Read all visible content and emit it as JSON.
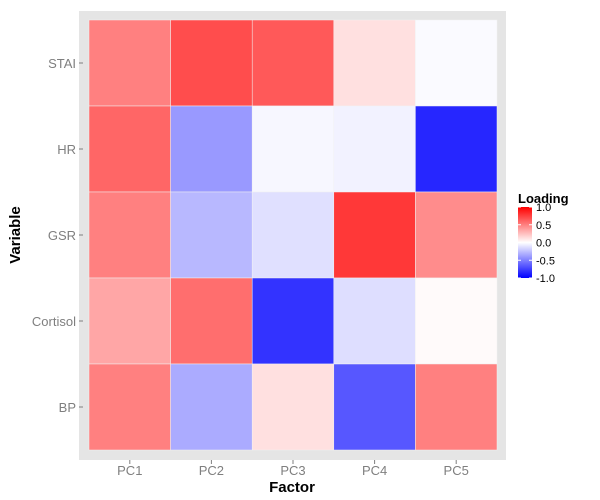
{
  "chart_data": {
    "type": "heatmap",
    "title": "",
    "xlabel": "Factor",
    "ylabel": "Variable",
    "x_categories": [
      "PC1",
      "PC2",
      "PC3",
      "PC4",
      "PC5"
    ],
    "y_categories": [
      "BP",
      "Cortisol",
      "GSR",
      "HR",
      "STAI"
    ],
    "values": [
      {
        "x": "PC1",
        "y": "STAI",
        "value": 0.5
      },
      {
        "x": "PC2",
        "y": "STAI",
        "value": 0.7
      },
      {
        "x": "PC3",
        "y": "STAI",
        "value": 0.65
      },
      {
        "x": "PC4",
        "y": "STAI",
        "value": 0.12
      },
      {
        "x": "PC5",
        "y": "STAI",
        "value": -0.02
      },
      {
        "x": "PC1",
        "y": "HR",
        "value": 0.6
      },
      {
        "x": "PC2",
        "y": "HR",
        "value": -0.4
      },
      {
        "x": "PC3",
        "y": "HR",
        "value": -0.03
      },
      {
        "x": "PC4",
        "y": "HR",
        "value": -0.05
      },
      {
        "x": "PC5",
        "y": "HR",
        "value": -0.85
      },
      {
        "x": "PC1",
        "y": "GSR",
        "value": 0.5
      },
      {
        "x": "PC2",
        "y": "GSR",
        "value": -0.28
      },
      {
        "x": "PC3",
        "y": "GSR",
        "value": -0.12
      },
      {
        "x": "PC4",
        "y": "GSR",
        "value": 0.78
      },
      {
        "x": "PC5",
        "y": "GSR",
        "value": 0.45
      },
      {
        "x": "PC1",
        "y": "Cortisol",
        "value": 0.35
      },
      {
        "x": "PC2",
        "y": "Cortisol",
        "value": 0.57
      },
      {
        "x": "PC3",
        "y": "Cortisol",
        "value": -0.8
      },
      {
        "x": "PC4",
        "y": "Cortisol",
        "value": -0.13
      },
      {
        "x": "PC5",
        "y": "Cortisol",
        "value": 0.02
      },
      {
        "x": "PC1",
        "y": "BP",
        "value": 0.5
      },
      {
        "x": "PC2",
        "y": "BP",
        "value": -0.33
      },
      {
        "x": "PC3",
        "y": "BP",
        "value": 0.12
      },
      {
        "x": "PC4",
        "y": "BP",
        "value": -0.66
      },
      {
        "x": "PC5",
        "y": "BP",
        "value": 0.5
      }
    ],
    "legend": {
      "title": "Loading",
      "breaks": [
        1.0,
        0.5,
        0.0,
        -0.5,
        -1.0
      ],
      "labels": [
        "1.0",
        "0.5",
        "0.0",
        "-0.5",
        "-1.0"
      ],
      "limits": [
        -1.0,
        1.0
      ],
      "placement": "right"
    },
    "colors": {
      "low": "#0000ff",
      "mid": "#ffffff",
      "high": "#ff0000",
      "panel_background": "#e5e5e5"
    },
    "grid": true
  }
}
